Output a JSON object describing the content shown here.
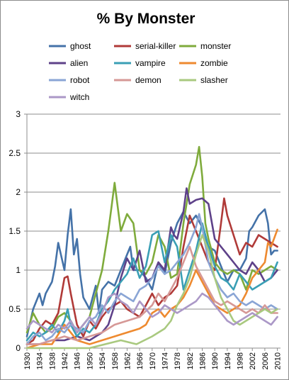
{
  "chart_data": {
    "type": "line",
    "title": "% By Monster",
    "xlabel": "",
    "ylabel": "",
    "xlim": [
      1930,
      2011
    ],
    "ylim": [
      0,
      3
    ],
    "yticks": [
      "0",
      "0.5",
      "1",
      "1.5",
      "2",
      "2.5",
      "3"
    ],
    "xticks": [
      "1930",
      "1934",
      "1938",
      "1942",
      "1946",
      "1950",
      "1954",
      "1958",
      "1962",
      "1966",
      "1970",
      "1974",
      "1978",
      "1982",
      "1986",
      "1990",
      "1994",
      "1998",
      "2002",
      "2006",
      "2010"
    ],
    "grid": "horizontal",
    "legend": "top",
    "series": [
      {
        "name": "ghost",
        "color": "#4472a8",
        "x": [
          1930,
          1932,
          1934,
          1935,
          1936,
          1938,
          1939,
          1940,
          1942,
          1943,
          1944,
          1945,
          1946,
          1947,
          1948,
          1950,
          1952,
          1953,
          1954,
          1956,
          1958,
          1960,
          1962,
          1963,
          1964,
          1966,
          1968,
          1970,
          1972,
          1974,
          1976,
          1978,
          1980,
          1982,
          1984,
          1986,
          1988,
          1990,
          1992,
          1994,
          1996,
          1998,
          2000,
          2001,
          2002,
          2004,
          2006,
          2007,
          2008,
          2009,
          2010
        ],
        "y": [
          0.15,
          0.5,
          0.7,
          0.55,
          0.7,
          0.85,
          1.05,
          1.35,
          1.0,
          1.45,
          1.78,
          1.2,
          1.4,
          0.95,
          0.65,
          0.5,
          0.8,
          0.45,
          0.75,
          0.85,
          0.8,
          1.0,
          1.2,
          1.3,
          1.0,
          1.0,
          0.9,
          0.75,
          1.1,
          0.95,
          1.35,
          1.6,
          1.75,
          1.6,
          1.7,
          1.55,
          1.3,
          1.25,
          1.05,
          0.85,
          1.0,
          1.0,
          1.15,
          1.5,
          1.55,
          1.7,
          1.78,
          1.6,
          1.2,
          1.25,
          1.25
        ]
      },
      {
        "name": "serial-killer",
        "color": "#b03a38",
        "x": [
          1930,
          1932,
          1934,
          1936,
          1938,
          1940,
          1942,
          1943,
          1944,
          1946,
          1948,
          1950,
          1952,
          1954,
          1956,
          1958,
          1960,
          1962,
          1964,
          1966,
          1968,
          1970,
          1972,
          1974,
          1976,
          1978,
          1980,
          1982,
          1984,
          1986,
          1988,
          1990,
          1992,
          1993,
          1994,
          1996,
          1998,
          2000,
          2002,
          2004,
          2006,
          2008,
          2010
        ],
        "y": [
          0.05,
          0.1,
          0.25,
          0.35,
          0.3,
          0.45,
          0.9,
          0.92,
          0.7,
          0.3,
          0.15,
          0.35,
          0.25,
          0.4,
          0.5,
          0.55,
          0.6,
          0.5,
          0.45,
          0.4,
          0.55,
          0.7,
          0.55,
          0.65,
          0.7,
          0.8,
          1.3,
          1.7,
          1.5,
          1.3,
          1.1,
          1.0,
          1.6,
          1.92,
          1.7,
          1.45,
          1.2,
          1.35,
          1.3,
          1.45,
          1.4,
          1.35,
          1.3
        ]
      },
      {
        "name": "monster",
        "color": "#7fab3c",
        "x": [
          1930,
          1932,
          1934,
          1936,
          1938,
          1940,
          1942,
          1944,
          1946,
          1948,
          1950,
          1952,
          1954,
          1956,
          1957,
          1958,
          1960,
          1962,
          1964,
          1966,
          1968,
          1970,
          1972,
          1974,
          1976,
          1978,
          1980,
          1982,
          1984,
          1985,
          1986,
          1987,
          1988,
          1990,
          1992,
          1994,
          1996,
          1998,
          2000,
          2002,
          2004,
          2006,
          2008,
          2010
        ],
        "y": [
          0.2,
          0.45,
          0.3,
          0.2,
          0.25,
          0.4,
          0.45,
          0.35,
          0.2,
          0.3,
          0.4,
          0.7,
          1.0,
          1.5,
          1.8,
          2.12,
          1.5,
          1.72,
          1.6,
          1.0,
          0.95,
          1.1,
          1.45,
          1.3,
          0.9,
          0.95,
          1.6,
          2.1,
          2.35,
          2.58,
          2.2,
          1.6,
          1.4,
          1.1,
          1.0,
          0.95,
          1.0,
          0.95,
          0.75,
          1.0,
          0.95,
          1.0,
          1.05,
          1.0
        ]
      },
      {
        "name": "alien",
        "color": "#5e4189",
        "x": [
          1930,
          1934,
          1938,
          1942,
          1946,
          1950,
          1954,
          1956,
          1958,
          1960,
          1962,
          1964,
          1966,
          1968,
          1970,
          1972,
          1974,
          1976,
          1977,
          1978,
          1980,
          1981,
          1982,
          1984,
          1986,
          1988,
          1990,
          1992,
          1994,
          1996,
          1998,
          2000,
          2002,
          2004,
          2006,
          2008,
          2010
        ],
        "y": [
          0.05,
          0.05,
          0.1,
          0.1,
          0.15,
          0.1,
          0.2,
          0.3,
          0.55,
          0.9,
          1.15,
          1.0,
          1.25,
          0.85,
          0.9,
          1.1,
          1.0,
          1.55,
          1.45,
          1.4,
          1.75,
          2.05,
          1.85,
          1.9,
          1.92,
          1.85,
          1.4,
          1.3,
          1.2,
          1.1,
          1.0,
          0.95,
          1.1,
          1.0,
          0.85,
          0.9,
          1.0
        ]
      },
      {
        "name": "vampire",
        "color": "#3a9fb5",
        "x": [
          1930,
          1932,
          1934,
          1936,
          1938,
          1940,
          1942,
          1943,
          1944,
          1946,
          1948,
          1950,
          1952,
          1954,
          1956,
          1958,
          1960,
          1962,
          1964,
          1966,
          1968,
          1970,
          1972,
          1974,
          1976,
          1978,
          1980,
          1982,
          1984,
          1986,
          1988,
          1990,
          1992,
          1994,
          1996,
          1998,
          2000,
          2002,
          2004,
          2006,
          2008,
          2010
        ],
        "y": [
          0.1,
          0.2,
          0.15,
          0.2,
          0.3,
          0.2,
          0.35,
          0.5,
          0.3,
          0.15,
          0.25,
          0.2,
          0.3,
          0.5,
          0.6,
          0.75,
          0.85,
          0.95,
          1.15,
          0.9,
          1.05,
          1.45,
          1.5,
          1.1,
          1.45,
          1.3,
          0.75,
          1.0,
          1.25,
          1.6,
          1.3,
          1.05,
          0.9,
          0.85,
          0.75,
          0.95,
          0.85,
          0.75,
          0.8,
          0.85,
          0.9,
          1.1
        ]
      },
      {
        "name": "zombie",
        "color": "#ee8a30",
        "x": [
          1930,
          1934,
          1938,
          1942,
          1946,
          1950,
          1954,
          1958,
          1962,
          1966,
          1968,
          1970,
          1972,
          1974,
          1976,
          1978,
          1980,
          1982,
          1984,
          1986,
          1988,
          1990,
          1992,
          1994,
          1996,
          1998,
          2000,
          2002,
          2004,
          2006,
          2007,
          2008,
          2010
        ],
        "y": [
          0.0,
          0.05,
          0.05,
          0.3,
          0.1,
          0.05,
          0.1,
          0.15,
          0.2,
          0.25,
          0.3,
          0.45,
          0.5,
          0.4,
          0.5,
          0.55,
          0.65,
          0.8,
          1.0,
          0.85,
          0.7,
          0.55,
          0.5,
          0.45,
          0.5,
          0.55,
          0.7,
          0.9,
          1.0,
          1.1,
          1.35,
          1.3,
          1.52
        ]
      },
      {
        "name": "robot",
        "color": "#8aa5d5",
        "x": [
          1930,
          1932,
          1934,
          1936,
          1938,
          1940,
          1942,
          1944,
          1946,
          1948,
          1950,
          1952,
          1954,
          1956,
          1958,
          1960,
          1962,
          1964,
          1966,
          1968,
          1970,
          1972,
          1974,
          1976,
          1978,
          1980,
          1982,
          1984,
          1985,
          1986,
          1988,
          1990,
          1992,
          1994,
          1996,
          1998,
          2000,
          2002,
          2004,
          2006,
          2008,
          2010
        ],
        "y": [
          0.05,
          0.15,
          0.2,
          0.1,
          0.15,
          0.25,
          0.2,
          0.3,
          0.25,
          0.2,
          0.35,
          0.4,
          0.55,
          0.45,
          0.6,
          0.7,
          0.65,
          0.6,
          0.75,
          0.8,
          0.9,
          1.05,
          0.95,
          1.0,
          1.1,
          1.2,
          1.35,
          1.55,
          1.72,
          1.55,
          1.1,
          0.9,
          0.75,
          0.65,
          0.7,
          0.6,
          0.55,
          0.6,
          0.55,
          0.5,
          0.55,
          0.5
        ]
      },
      {
        "name": "demon",
        "color": "#d69896",
        "x": [
          1930,
          1934,
          1938,
          1942,
          1946,
          1950,
          1954,
          1958,
          1962,
          1966,
          1970,
          1972,
          1974,
          1976,
          1978,
          1980,
          1982,
          1984,
          1986,
          1988,
          1990,
          1992,
          1994,
          1996,
          1998,
          2000,
          2002,
          2004,
          2006,
          2008,
          2010
        ],
        "y": [
          0.05,
          0.05,
          0.1,
          0.15,
          0.1,
          0.15,
          0.2,
          0.3,
          0.35,
          0.4,
          0.55,
          0.7,
          0.6,
          0.75,
          0.9,
          1.1,
          1.3,
          1.05,
          0.9,
          0.75,
          0.6,
          0.55,
          0.6,
          0.55,
          0.5,
          0.45,
          0.5,
          0.45,
          0.55,
          0.45,
          0.45
        ]
      },
      {
        "name": "slasher",
        "color": "#a9c97f",
        "x": [
          1930,
          1940,
          1950,
          1955,
          1960,
          1965,
          1970,
          1972,
          1974,
          1976,
          1978,
          1980,
          1982,
          1984,
          1986,
          1988,
          1990,
          1992,
          1994,
          1996,
          1998,
          2000,
          2002,
          2004,
          2006,
          2008,
          2010
        ],
        "y": [
          0.0,
          0.0,
          0.0,
          0.05,
          0.1,
          0.05,
          0.15,
          0.2,
          0.25,
          0.35,
          0.55,
          0.7,
          0.9,
          1.2,
          1.45,
          1.25,
          0.9,
          0.65,
          0.5,
          0.35,
          0.3,
          0.35,
          0.4,
          0.45,
          0.5,
          0.45,
          0.5
        ]
      },
      {
        "name": "witch",
        "color": "#ab98c7",
        "x": [
          1930,
          1932,
          1934,
          1936,
          1938,
          1940,
          1942,
          1944,
          1946,
          1948,
          1950,
          1952,
          1954,
          1956,
          1958,
          1960,
          1962,
          1964,
          1966,
          1968,
          1970,
          1972,
          1974,
          1976,
          1978,
          1980,
          1982,
          1984,
          1986,
          1988,
          1990,
          1992,
          1994,
          1996,
          1998,
          2000,
          2002,
          2004,
          2006,
          2008,
          2010
        ],
        "y": [
          0.25,
          0.35,
          0.3,
          0.25,
          0.2,
          0.3,
          0.25,
          0.35,
          0.2,
          0.3,
          0.4,
          0.3,
          0.45,
          0.65,
          0.7,
          0.6,
          0.55,
          0.45,
          0.6,
          0.5,
          0.4,
          0.45,
          0.55,
          0.5,
          0.45,
          0.5,
          0.55,
          0.6,
          0.7,
          0.65,
          0.55,
          0.45,
          0.35,
          0.3,
          0.35,
          0.4,
          0.45,
          0.4,
          0.35,
          0.3,
          0.4
        ]
      }
    ]
  }
}
